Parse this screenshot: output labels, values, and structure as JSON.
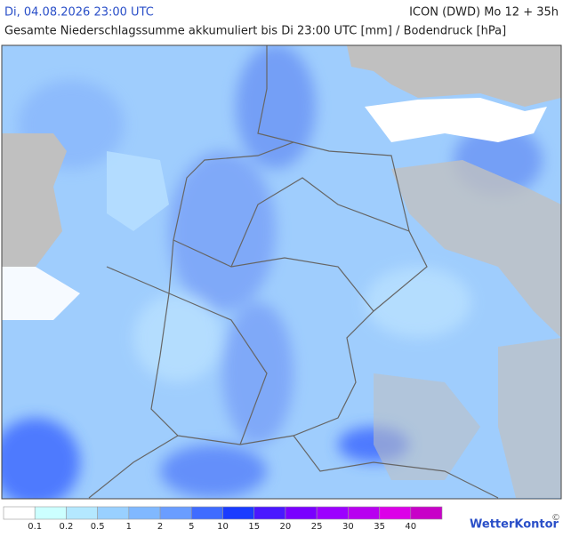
{
  "header": {
    "datetime": "Di, 04.08.2026 23:00 UTC",
    "model": "ICON (DWD) Mo 12 + 35h",
    "subtitle": "Gesamte Niederschlagssumme akkumuliert bis Di 23:00 UTC [mm] / Bodendruck [hPa]"
  },
  "legend": {
    "labels": [
      "0.1",
      "0.2",
      "0.5",
      "1",
      "2",
      "5",
      "10",
      "15",
      "20",
      "25",
      "30",
      "35",
      "40"
    ],
    "colors": [
      "#ffffff",
      "#ccffff",
      "#b4e8ff",
      "#99d0ff",
      "#80b8ff",
      "#6a9dff",
      "#3f6cff",
      "#1a3cff",
      "#4a18ff",
      "#7a00ff",
      "#9c00ff",
      "#b800f0",
      "#dc00e8",
      "#c800c8"
    ]
  },
  "brand": "WetterKontor",
  "copyright": "©"
}
